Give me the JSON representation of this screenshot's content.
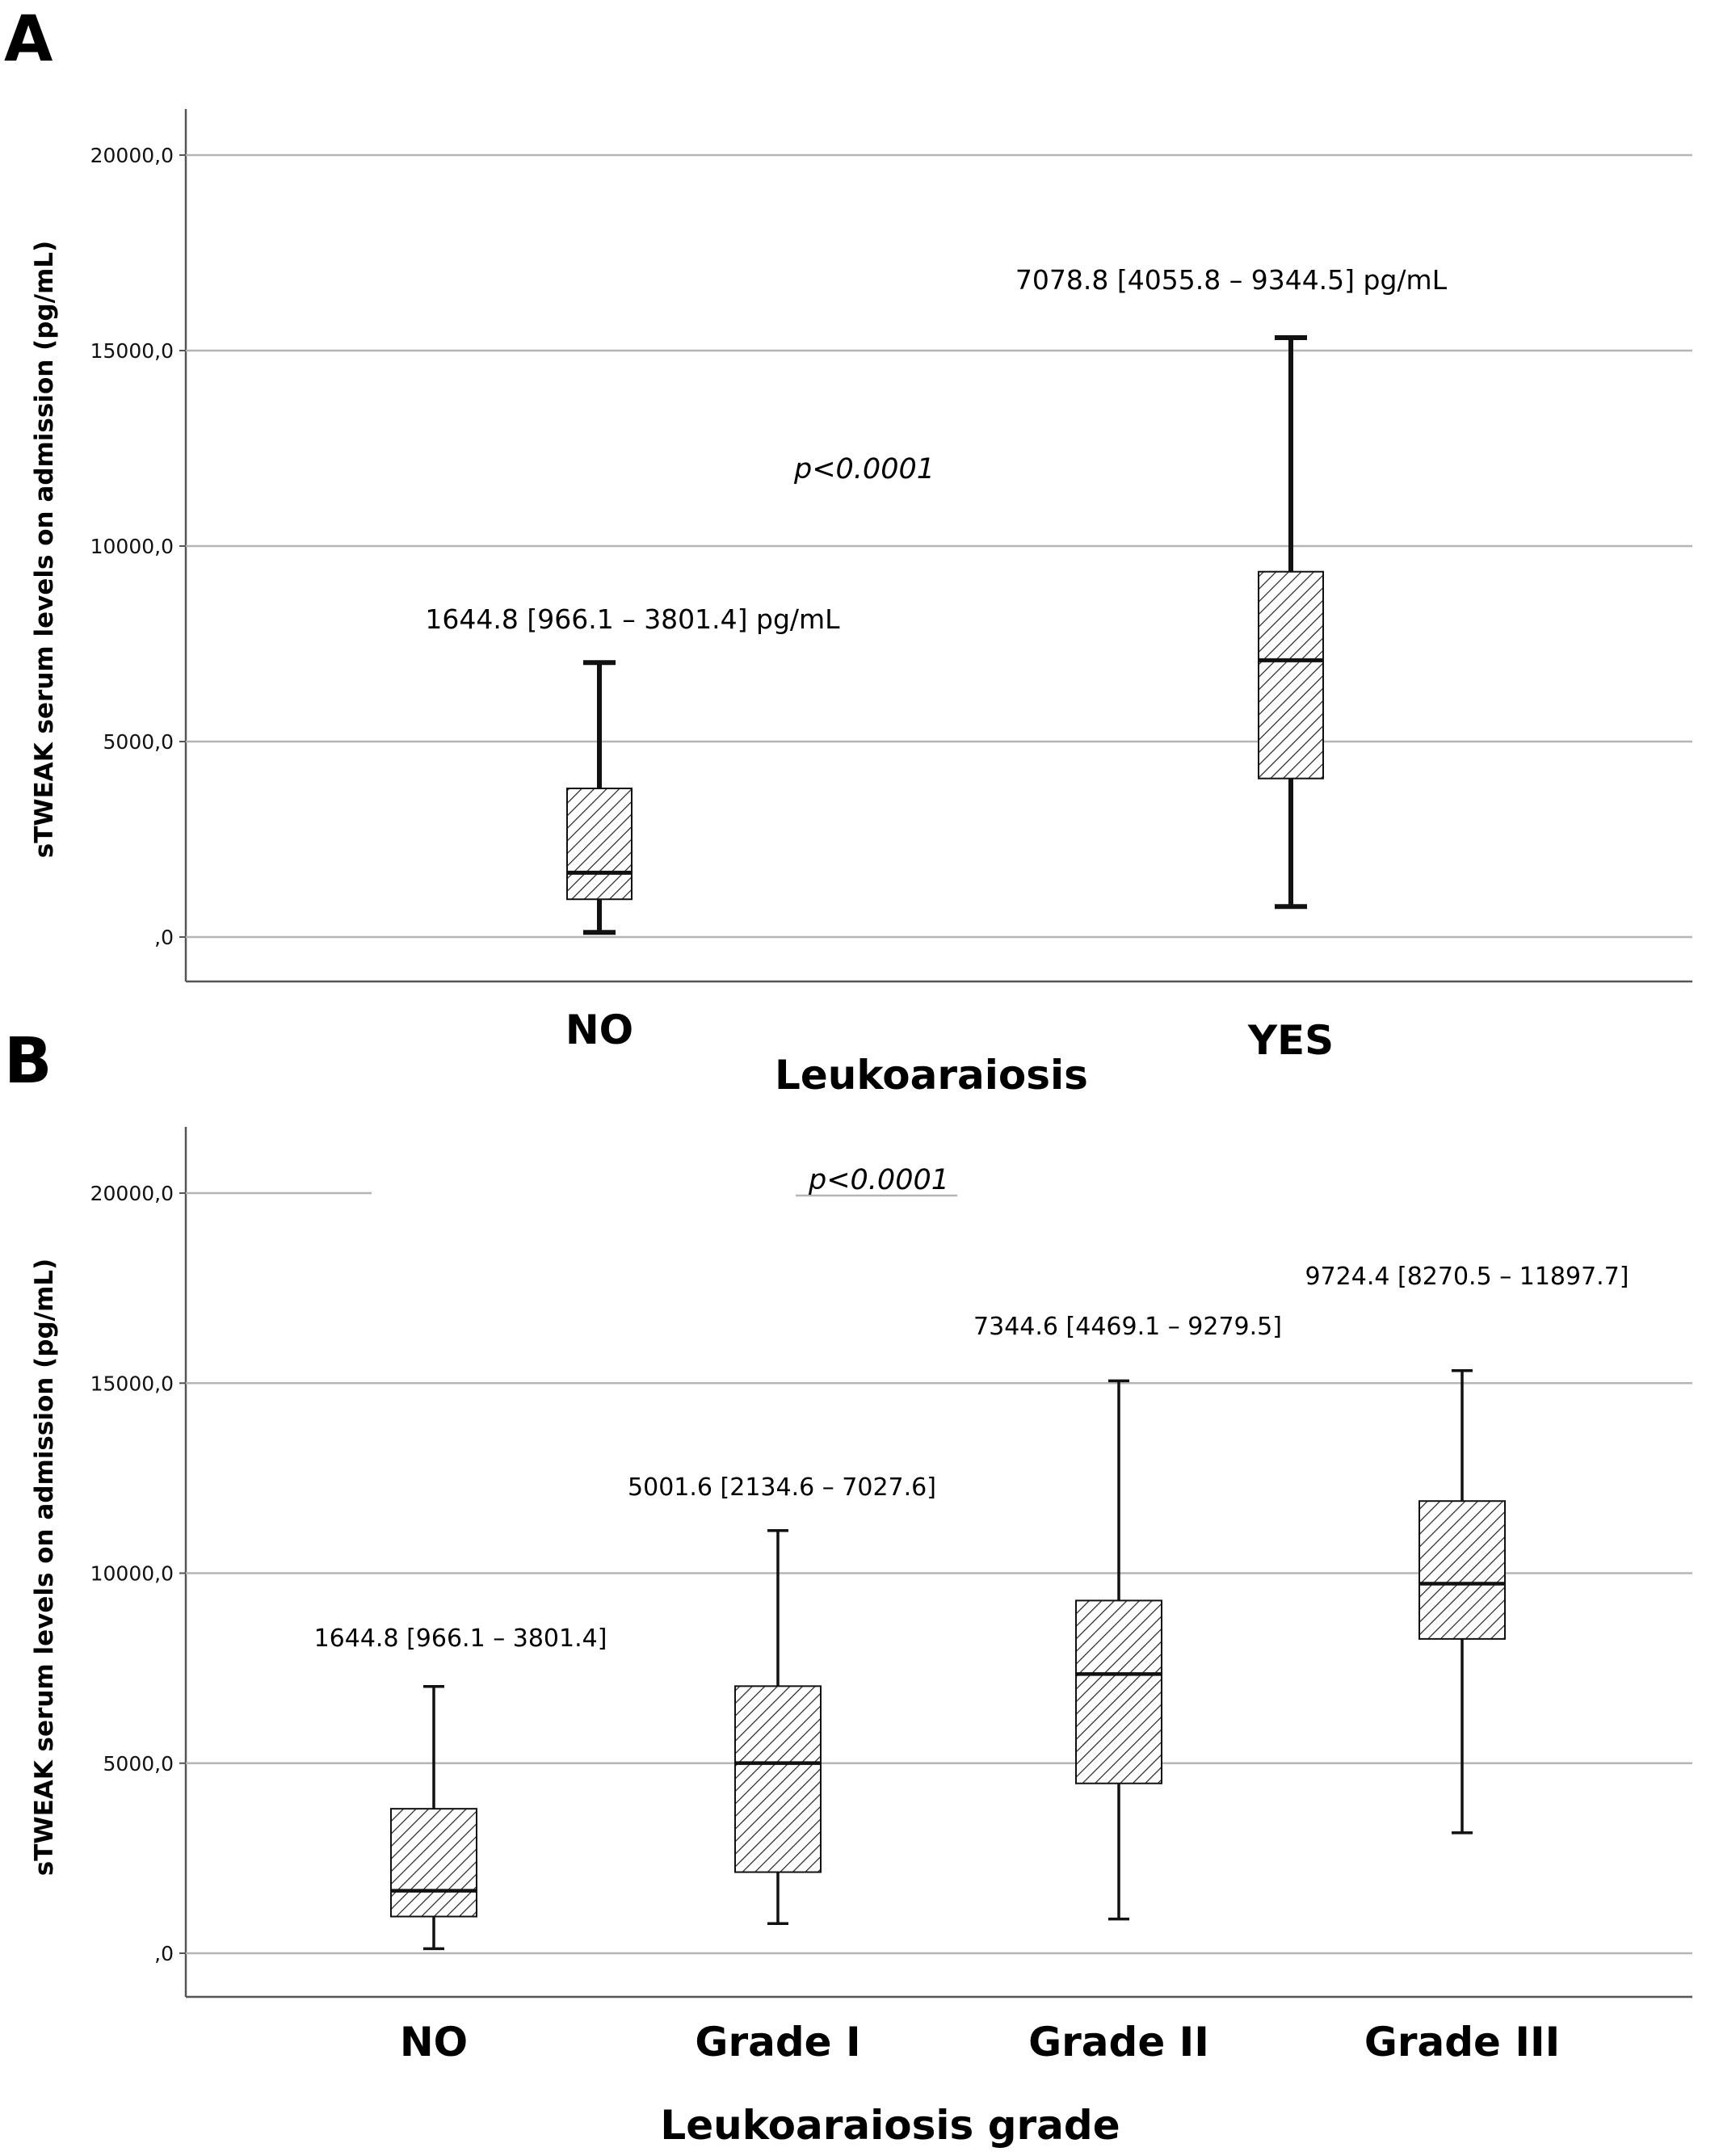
{
  "chart_data": [
    {
      "type": "box",
      "panel_label": "A",
      "ylabel": "sTWEAK serum levels on admission (pg/mL)",
      "xlabel": "Leukoaraiosis",
      "ylim": [
        -1100,
        21100
      ],
      "yticks": [
        0,
        5000,
        10000,
        15000,
        20000
      ],
      "ytick_labels": [
        ",0",
        "5000,0",
        "10000,0",
        "15000,0",
        "20000,0"
      ],
      "grid": "horizontal",
      "p_value": "p<0.0001",
      "categories": [
        "NO",
        "YES"
      ],
      "boxes": [
        {
          "category": "NO",
          "whisker_low": 120,
          "q1": 966.1,
          "median": 1644.8,
          "q3": 3801.4,
          "whisker_high": 7020,
          "label": "1644.8 [966.1 – 3801.4] pg/mL"
        },
        {
          "category": "YES",
          "whisker_low": 780,
          "q1": 4055.8,
          "median": 7078.8,
          "q3": 9344.5,
          "whisker_high": 15330,
          "label": "7078.8 [4055.8 – 9344.5] pg/mL"
        }
      ]
    },
    {
      "type": "box",
      "panel_label": "B",
      "ylabel": "sTWEAK serum levels on admission (pg/mL)",
      "xlabel": "Leukoaraiosis grade",
      "ylim": [
        -1100,
        21100
      ],
      "yticks": [
        0,
        5000,
        10000,
        15000,
        20000
      ],
      "ytick_labels": [
        ",0",
        "5000,0",
        "10000,0",
        "15000,0",
        "20000,0"
      ],
      "grid": "horizontal",
      "p_value": "p<0.0001",
      "categories": [
        "NO",
        "Grade I",
        "Grade II",
        "Grade III"
      ],
      "boxes": [
        {
          "category": "NO",
          "whisker_low": 120,
          "q1": 966.1,
          "median": 1644.8,
          "q3": 3801.4,
          "whisker_high": 7020,
          "label": "1644.8 [966.1 – 3801.4]"
        },
        {
          "category": "Grade I",
          "whisker_low": 780,
          "q1": 2134.6,
          "median": 5001.6,
          "q3": 7027.6,
          "whisker_high": 11120,
          "label": "5001.6 [2134.6 – 7027.6]"
        },
        {
          "category": "Grade II",
          "whisker_low": 900,
          "q1": 4469.1,
          "median": 7344.6,
          "q3": 9279.5,
          "whisker_high": 15060,
          "label": "7344.6 [4469.1 – 9279.5]"
        },
        {
          "category": "Grade III",
          "whisker_low": 3170,
          "q1": 8270.5,
          "median": 9724.4,
          "q3": 11897.7,
          "whisker_high": 15330,
          "label": "9724.4 [8270.5 – 11897.7]"
        }
      ]
    }
  ],
  "colors": {
    "axis": "#555555",
    "grid": "#b5b5b5",
    "box_stroke": "#111111",
    "hatch": "#222222"
  }
}
